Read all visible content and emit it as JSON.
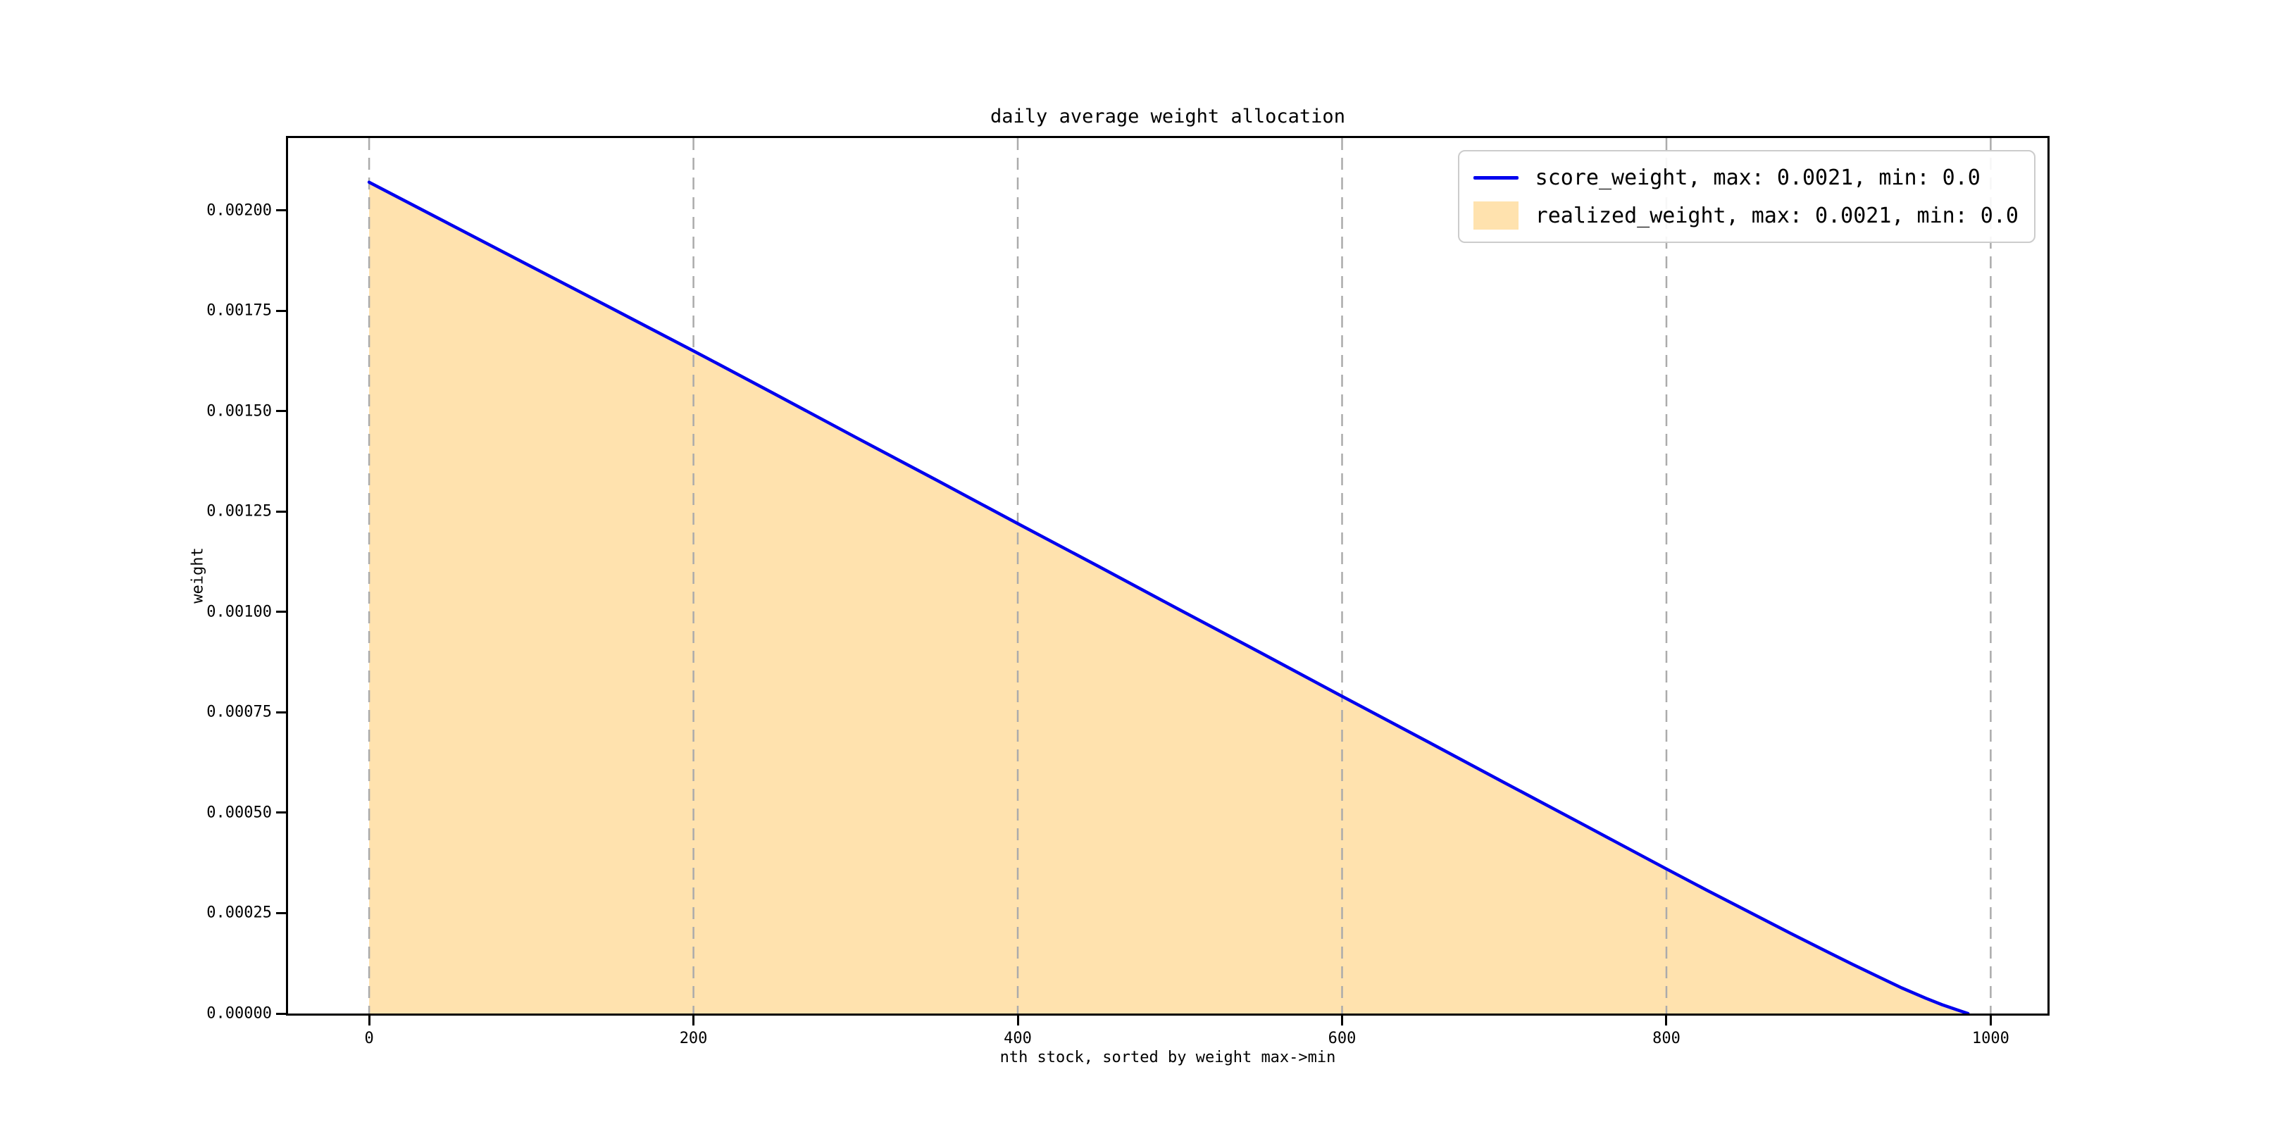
{
  "colors": {
    "line_blue": "#0000ee",
    "fill_orange": "#ffe2ae",
    "grid_gray": "#ababab",
    "spine_black": "#000000",
    "legend_border": "#cccccc",
    "text": "#000000",
    "background": "#ffffff"
  },
  "legend": {
    "position": "upper right",
    "entries": [
      {
        "label": "score_weight, max: 0.0021, min: 0.0",
        "handle": "line",
        "color": "#0000ee"
      },
      {
        "label": "realized_weight, max: 0.0021, min: 0.0",
        "handle": "patch",
        "color": "#ffe2ae"
      }
    ]
  },
  "chart_data": {
    "type": "area",
    "title": "daily average weight allocation",
    "xlabel": "nth stock, sorted by weight max->min",
    "ylabel": "weight",
    "xlim": [
      -50,
      1035
    ],
    "ylim": [
      0,
      0.00218
    ],
    "grid": {
      "vertical": true,
      "horizontal": false,
      "style": "dashed"
    },
    "xticks": {
      "values": [
        0,
        200,
        400,
        600,
        800,
        1000
      ],
      "labels": [
        "0",
        "200",
        "400",
        "600",
        "800",
        "1000"
      ]
    },
    "yticks": {
      "values": [
        0,
        0.00025,
        0.0005,
        0.00075,
        0.001,
        0.00125,
        0.0015,
        0.00175,
        0.002
      ],
      "labels": [
        "0.00000",
        "0.00025",
        "0.00050",
        "0.00075",
        "0.00100",
        "0.00125",
        "0.00150",
        "0.00175",
        "0.00200"
      ]
    },
    "x": [
      0,
      50,
      100,
      150,
      200,
      250,
      300,
      350,
      400,
      450,
      500,
      550,
      600,
      650,
      700,
      750,
      800,
      825,
      850,
      875,
      900,
      915,
      930,
      945,
      960,
      970,
      980,
      986
    ],
    "series": [
      {
        "name": "score_weight",
        "label": "score_weight, max: 0.0021, min: 0.0",
        "style": "line",
        "color": "#0000ee",
        "max": 0.0021,
        "min": 0.0,
        "values": [
          0.00207,
          0.001965,
          0.00186,
          0.001755,
          0.00165,
          0.001543,
          0.001435,
          0.001328,
          0.00122,
          0.001113,
          0.001005,
          0.000898,
          0.00079,
          0.000683,
          0.000575,
          0.000468,
          0.00036,
          0.000307,
          0.000255,
          0.000203,
          0.000152,
          0.000122,
          9.3e-05,
          6.4e-05,
          3.8e-05,
          2.2e-05,
          8e-06,
          0.0
        ]
      },
      {
        "name": "realized_weight",
        "label": "realized_weight, max: 0.0021, min: 0.0",
        "style": "area",
        "color": "#ffe2ae",
        "max": 0.0021,
        "min": 0.0,
        "values": [
          0.00207,
          0.001965,
          0.00186,
          0.001755,
          0.00165,
          0.001543,
          0.001435,
          0.001328,
          0.00122,
          0.001113,
          0.001005,
          0.000898,
          0.00079,
          0.000683,
          0.000575,
          0.000468,
          0.00036,
          0.000307,
          0.000255,
          0.000203,
          0.000152,
          0.000122,
          9.3e-05,
          6.4e-05,
          3.8e-05,
          2.2e-05,
          8e-06,
          0.0
        ]
      }
    ],
    "legend_position": "upper right"
  }
}
